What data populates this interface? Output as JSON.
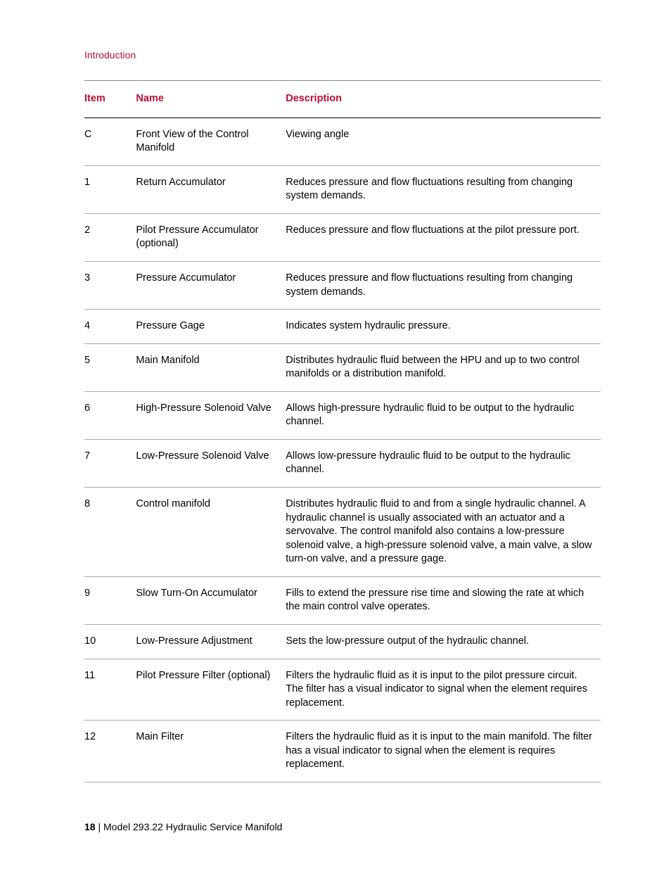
{
  "colors": {
    "accent": "#be0f34",
    "text": "#000000",
    "rule": "#888888",
    "header_rule": "#000000",
    "background": "#ffffff"
  },
  "section_title": "Introduction",
  "table": {
    "columns": [
      "Item",
      "Name",
      "Description"
    ],
    "rows": [
      {
        "item": "C",
        "name": "Front View of the Control Manifold",
        "desc": "Viewing angle"
      },
      {
        "item": "1",
        "name": "Return Accumulator",
        "desc": "Reduces pressure and flow fluctuations resulting from changing system demands."
      },
      {
        "item": "2",
        "name": "Pilot Pressure Accumulator (optional)",
        "desc": "Reduces pressure and flow fluctuations at the pilot pressure port."
      },
      {
        "item": "3",
        "name": "Pressure Accumulator",
        "desc": "Reduces pressure and flow fluctuations resulting from changing system demands."
      },
      {
        "item": "4",
        "name": "Pressure Gage",
        "desc": "Indicates system hydraulic pressure."
      },
      {
        "item": "5",
        "name": "Main Manifold",
        "desc": "Distributes hydraulic fluid between the HPU and up to two control manifolds or a distribution manifold."
      },
      {
        "item": "6",
        "name": "High-Pressure Solenoid Valve",
        "desc": "Allows high-pressure hydraulic fluid to be output to the hydraulic channel."
      },
      {
        "item": "7",
        "name": "Low-Pressure Solenoid Valve",
        "desc": "Allows low-pressure hydraulic fluid to be output to the hydraulic channel."
      },
      {
        "item": "8",
        "name": "Control manifold",
        "desc": "Distributes hydraulic fluid to and from a single hydraulic channel. A hydraulic channel is usually associated with an actuator and a servovalve. The control manifold also contains a low-pressure solenoid valve, a high-pressure solenoid valve, a main valve, a slow turn-on valve, and a pressure gage."
      },
      {
        "item": "9",
        "name": "Slow Turn-On Accumulator",
        "desc": "Fills to extend the pressure rise time and slowing the rate at which the main control valve operates."
      },
      {
        "item": "10",
        "name": "Low-Pressure Adjustment",
        "desc": "Sets the low-pressure output of the hydraulic channel."
      },
      {
        "item": "11",
        "name": "Pilot Pressure Filter (optional)",
        "desc": "Filters the hydraulic fluid as it is input to the pilot pressure circuit. The filter has a visual indicator to signal when the element requires replacement."
      },
      {
        "item": "12",
        "name": "Main Filter",
        "desc": "Filters the hydraulic fluid as it is input to the main manifold. The filter has a visual indicator to signal when the element is requires replacement."
      }
    ]
  },
  "footer": {
    "page_number": "18",
    "separator": " | ",
    "doc_title": "Model 293.22 Hydraulic Service Manifold"
  }
}
